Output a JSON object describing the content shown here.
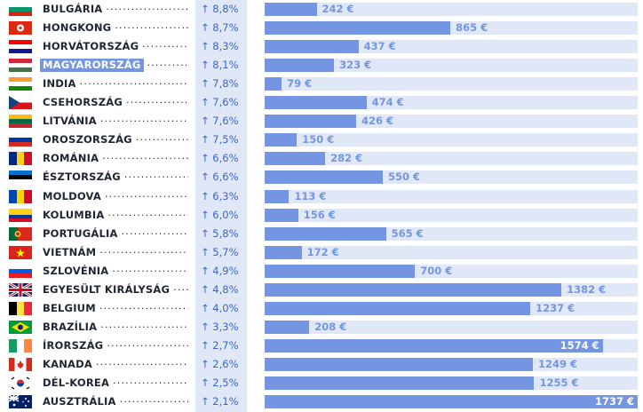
{
  "chart_data": {
    "type": "bar",
    "orientation": "horizontal",
    "arrow": "↑",
    "max_value": 1737,
    "highlight_category": "MAGYARORSZÁG",
    "colors": {
      "bar": "#7496e2",
      "track": "#e0e8f8",
      "text": "#1f2533",
      "pct": "#3a64c8",
      "value_light": "#7496e2",
      "value_dark": "#ffffff"
    },
    "categories": [
      "BULGÁRIA",
      "HONGKONG",
      "HORVÁTORSZÁG",
      "MAGYARORSZÁG",
      "INDIA",
      "CSEHORSZÁG",
      "LITVÁNIA",
      "OROSZORSZÁG",
      "ROMÁNIA",
      "ÉSZTORSZÁG",
      "MOLDOVA",
      "KOLUMBIA",
      "PORTUGÁLIA",
      "VIETNÁM",
      "SZLOVÉNIA",
      "EGYESÜLT KIRÁLYSÁG",
      "BELGIUM",
      "BRAZÍLIA",
      "ÍRORSZÁG",
      "KANADA",
      "DÉL-KOREA",
      "AUSZTRÁLIA"
    ],
    "growth_labels": [
      "8,8%",
      "8,7%",
      "8,3%",
      "8,1%",
      "7,8%",
      "7,6%",
      "7,6%",
      "7,5%",
      "6,6%",
      "6,6%",
      "6,3%",
      "6,0%",
      "5,8%",
      "5,7%",
      "4,9%",
      "4,8%",
      "4,0%",
      "3,3%",
      "2,7%",
      "2,6%",
      "2,5%",
      "2,1%"
    ],
    "values": [
      242,
      865,
      437,
      323,
      79,
      474,
      426,
      150,
      282,
      550,
      113,
      156,
      565,
      172,
      700,
      1382,
      1237,
      208,
      1574,
      1249,
      1255,
      1737
    ],
    "value_labels": [
      "242 €",
      "865 €",
      "437 €",
      "323 €",
      "79 €",
      "474 €",
      "426 €",
      "150 €",
      "282 €",
      "550 €",
      "113 €",
      "156 €",
      "565 €",
      "172 €",
      "700 €",
      "1382 €",
      "1237 €",
      "208 €",
      "1574 €",
      "1249 €",
      "1255 €",
      "1737 €"
    ],
    "flags": [
      [
        "h",
        "#ffffff",
        "#00966e",
        "#d62612"
      ],
      [
        "hk",
        "#de2910",
        "#ffffff"
      ],
      [
        "h",
        "#ff0000",
        "#ffffff",
        "#171796"
      ],
      [
        "h",
        "#ce2939",
        "#ffffff",
        "#477050"
      ],
      [
        "h",
        "#ff9933",
        "#ffffff",
        "#138808"
      ],
      [
        "cz",
        "#ffffff",
        "#d7141a",
        "#11457e"
      ],
      [
        "h",
        "#fdb913",
        "#006a44",
        "#c1272d"
      ],
      [
        "h",
        "#ffffff",
        "#0039a6",
        "#d52b1e"
      ],
      [
        "v",
        "#002b7f",
        "#fcd116",
        "#ce1126"
      ],
      [
        "h",
        "#0072ce",
        "#000000",
        "#ffffff"
      ],
      [
        "v",
        "#0046ae",
        "#ffd200",
        "#cc092f"
      ],
      [
        "h",
        "#fcd116",
        "#fcd116",
        "#003893",
        "#ce1126"
      ],
      [
        "pt",
        "#046a38",
        "#da291c"
      ],
      [
        "vn",
        "#da251d",
        "#ffff00"
      ],
      [
        "h",
        "#ffffff",
        "#005ce6",
        "#ed1c24"
      ],
      [
        "uk",
        "#012169",
        "#ffffff",
        "#c8102e"
      ],
      [
        "v",
        "#000000",
        "#fae042",
        "#ed2939"
      ],
      [
        "br",
        "#009c3b",
        "#ffdf00",
        "#002776"
      ],
      [
        "v",
        "#169b62",
        "#ffffff",
        "#ff883e"
      ],
      [
        "ca",
        "#d52b1e",
        "#ffffff"
      ],
      [
        "kr",
        "#ffffff",
        "#cd2e3a",
        "#0047a0"
      ],
      [
        "au",
        "#012169",
        "#ffffff"
      ]
    ]
  }
}
